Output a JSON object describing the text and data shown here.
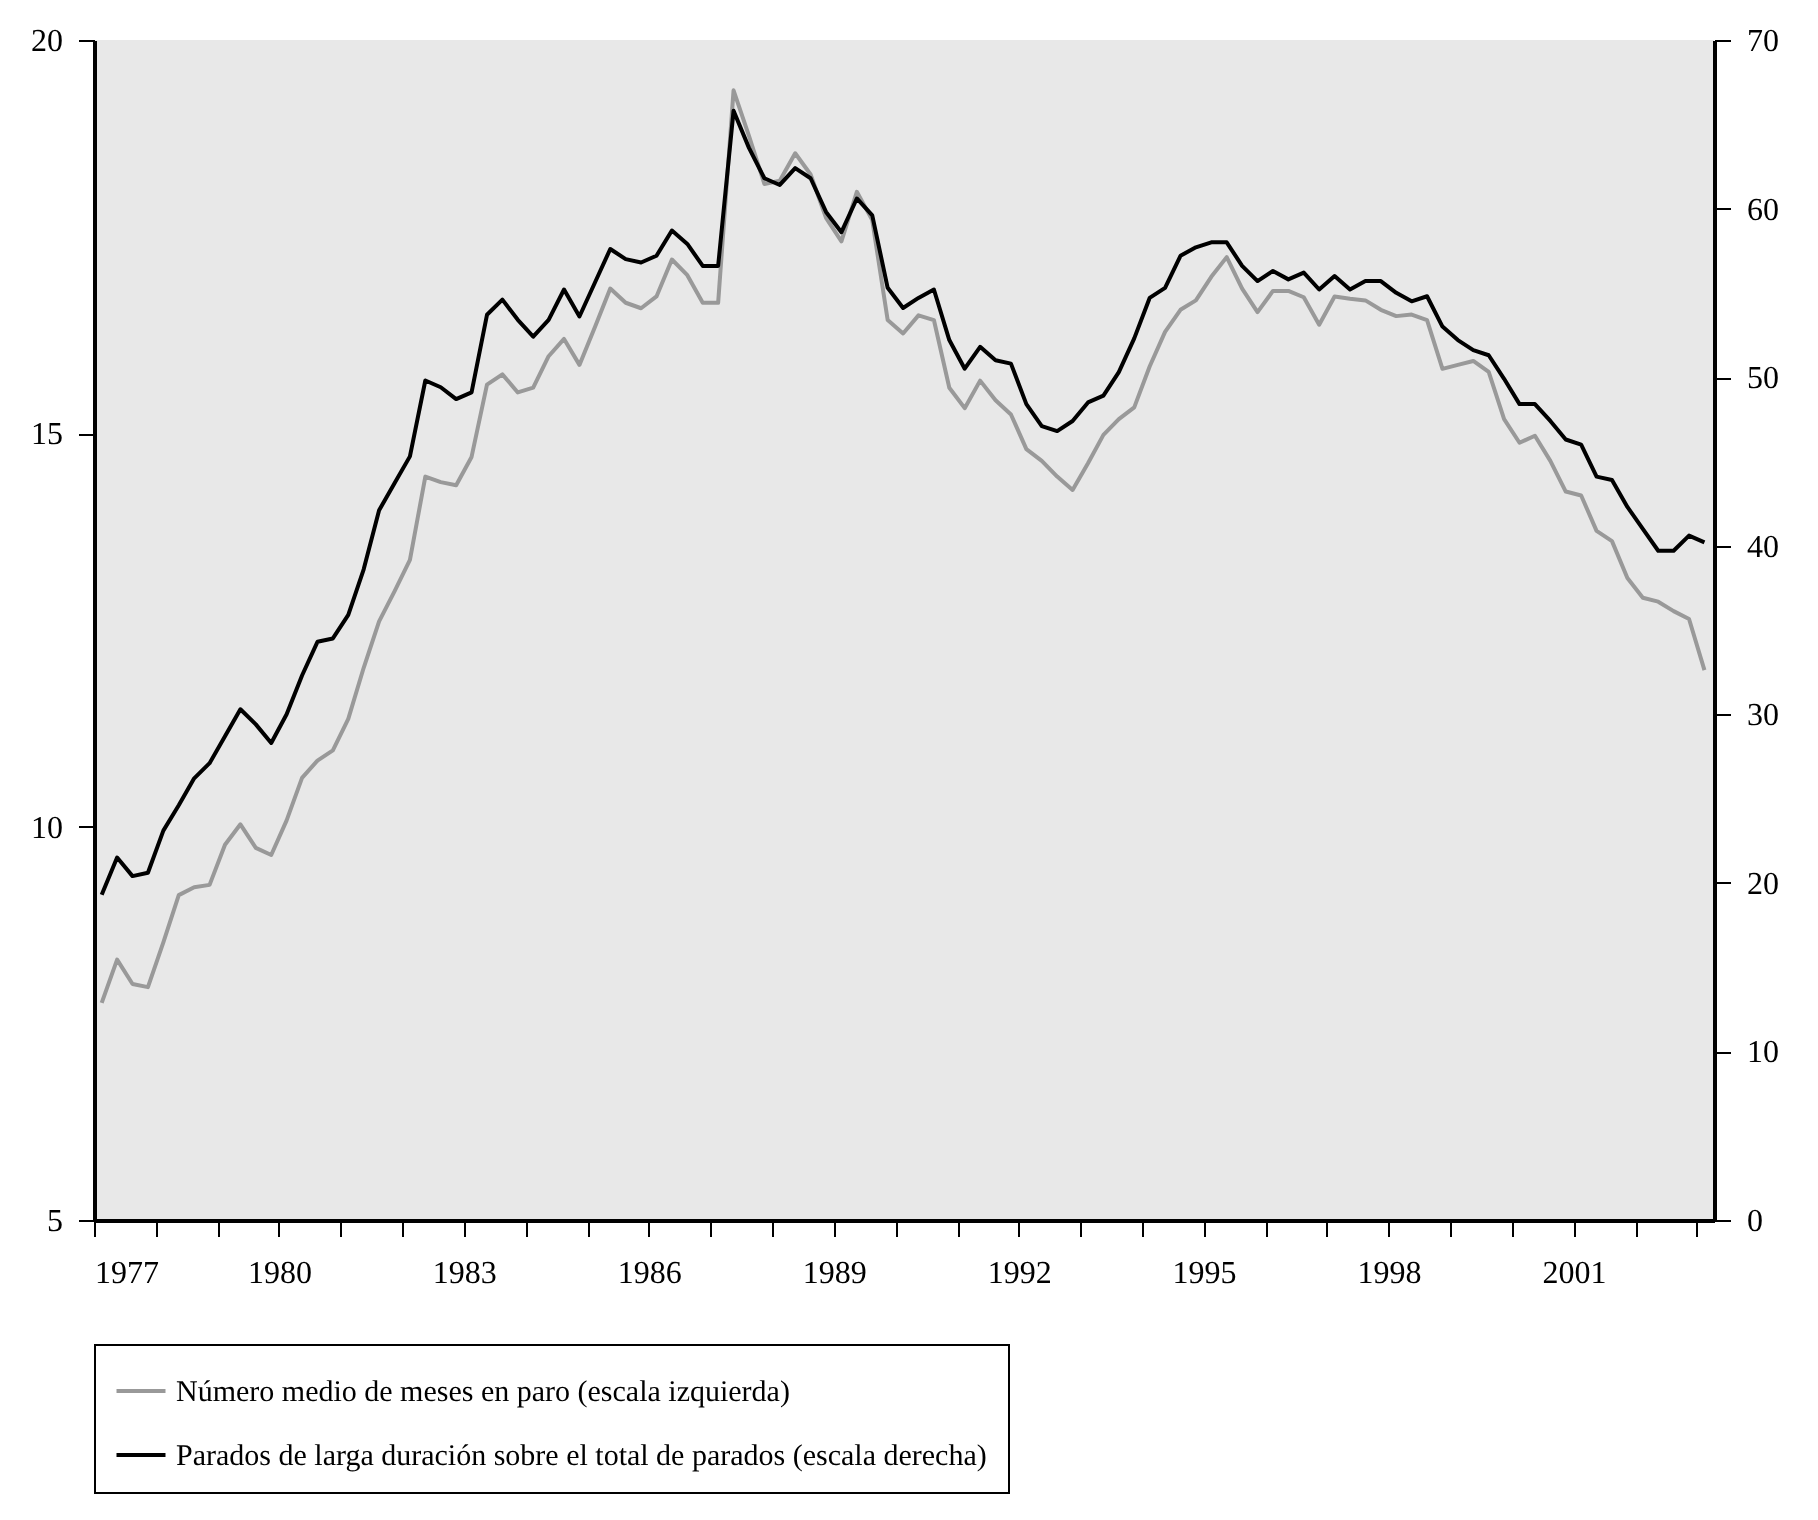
{
  "chart_data": {
    "type": "line",
    "x": [
      1977.125,
      1977.375,
      1977.625,
      1977.875,
      1978.125,
      1978.375,
      1978.625,
      1978.875,
      1979.125,
      1979.375,
      1979.625,
      1979.875,
      1980.125,
      1980.375,
      1980.625,
      1980.875,
      1981.125,
      1981.375,
      1981.625,
      1981.875,
      1982.125,
      1982.375,
      1982.625,
      1982.875,
      1983.125,
      1983.375,
      1983.625,
      1983.875,
      1984.125,
      1984.375,
      1984.625,
      1984.875,
      1985.125,
      1985.375,
      1985.625,
      1985.875,
      1986.125,
      1986.375,
      1986.625,
      1986.875,
      1987.125,
      1987.375,
      1987.625,
      1987.875,
      1988.125,
      1988.375,
      1988.625,
      1988.875,
      1989.125,
      1989.375,
      1989.625,
      1989.875,
      1990.125,
      1990.375,
      1990.625,
      1990.875,
      1991.125,
      1991.375,
      1991.625,
      1991.875,
      1992.125,
      1992.375,
      1992.625,
      1992.875,
      1993.125,
      1993.375,
      1993.625,
      1993.875,
      1994.125,
      1994.375,
      1994.625,
      1994.875,
      1995.125,
      1995.375,
      1995.625,
      1995.875,
      1996.125,
      1996.375,
      1996.625,
      1996.875,
      1997.125,
      1997.375,
      1997.625,
      1997.875,
      1998.125,
      1998.375,
      1998.625,
      1998.875,
      1999.125,
      1999.375,
      1999.625,
      1999.875,
      2000.125,
      2000.375,
      2000.625,
      2000.875,
      2001.125,
      2001.375,
      2001.625,
      2001.875,
      2002.125,
      2002.375,
      2002.625,
      2002.875,
      2003.125
    ],
    "series": [
      {
        "name": "Número medio de meses en paro (escala izquierda)",
        "color": "#999999",
        "values": [
          7.76,
          8.31,
          8.0,
          7.96,
          8.53,
          9.13,
          9.23,
          9.26,
          9.77,
          10.03,
          9.73,
          9.64,
          10.08,
          10.62,
          10.84,
          10.97,
          11.37,
          12.02,
          12.61,
          12.99,
          13.39,
          14.45,
          14.38,
          14.34,
          14.7,
          15.62,
          15.75,
          15.52,
          15.58,
          15.98,
          16.2,
          15.87,
          16.35,
          16.84,
          16.66,
          16.59,
          16.74,
          17.21,
          17.01,
          16.66,
          16.66,
          19.36,
          18.78,
          18.17,
          18.21,
          18.56,
          18.29,
          17.74,
          17.44,
          18.07,
          17.71,
          16.44,
          16.27,
          16.5,
          16.44,
          15.58,
          15.32,
          15.67,
          15.42,
          15.24,
          14.8,
          14.65,
          14.45,
          14.28,
          14.62,
          14.98,
          15.18,
          15.33,
          15.85,
          16.29,
          16.57,
          16.69,
          16.99,
          17.24,
          16.84,
          16.54,
          16.81,
          16.81,
          16.73,
          16.38,
          16.74,
          16.71,
          16.69,
          16.57,
          16.49,
          16.51,
          16.44,
          15.82,
          15.87,
          15.92,
          15.78,
          15.18,
          14.88,
          14.97,
          14.65,
          14.26,
          14.21,
          13.76,
          13.63,
          13.16,
          12.91,
          12.86,
          12.74,
          12.64,
          11.99
        ]
      },
      {
        "name": "Parados de larga duración sobre el total de parados (escala derecha)",
        "color": "#000000",
        "axis": "y2",
        "values": [
          19.3,
          21.5,
          20.4,
          20.6,
          23.1,
          24.6,
          26.2,
          27.1,
          28.7,
          30.3,
          29.4,
          28.3,
          30.0,
          32.3,
          34.3,
          34.5,
          35.9,
          38.6,
          42.1,
          43.7,
          45.3,
          49.8,
          49.4,
          48.7,
          49.1,
          53.7,
          54.6,
          53.4,
          52.4,
          53.4,
          55.2,
          53.6,
          55.6,
          57.6,
          57.0,
          56.8,
          57.2,
          58.7,
          57.9,
          56.6,
          56.6,
          65.8,
          63.6,
          61.8,
          61.4,
          62.4,
          61.8,
          59.8,
          58.6,
          60.6,
          59.6,
          55.3,
          54.1,
          54.7,
          55.2,
          52.2,
          50.5,
          51.8,
          51.0,
          50.8,
          48.4,
          47.1,
          46.8,
          47.4,
          48.5,
          48.9,
          50.3,
          52.3,
          54.7,
          55.3,
          57.2,
          57.7,
          58.0,
          58.0,
          56.6,
          55.7,
          56.3,
          55.8,
          56.2,
          55.2,
          56.0,
          55.2,
          55.7,
          55.7,
          55.0,
          54.5,
          54.8,
          53.0,
          52.2,
          51.6,
          51.3,
          49.9,
          48.4,
          48.4,
          47.4,
          46.3,
          46.0,
          44.1,
          43.9,
          42.3,
          41.0,
          39.7,
          39.7,
          40.6,
          40.2
        ]
      }
    ],
    "xlim": [
      1977,
      2003.28
    ],
    "xticks": [
      1977,
      {
        "value": 1978,
        "label": null
      },
      {
        "value": 1979,
        "label": null
      },
      1980,
      {
        "value": 1981,
        "label": null
      },
      {
        "value": 1982,
        "label": null
      },
      1983,
      {
        "value": 1984,
        "label": null
      },
      {
        "value": 1985,
        "label": null
      },
      1986,
      {
        "value": 1987,
        "label": null
      },
      {
        "value": 1988,
        "label": null
      },
      1989,
      {
        "value": 1990,
        "label": null
      },
      {
        "value": 1991,
        "label": null
      },
      1992,
      {
        "value": 1993,
        "label": null
      },
      {
        "value": 1994,
        "label": null
      },
      1995,
      {
        "value": 1996,
        "label": null
      },
      {
        "value": 1997,
        "label": null
      },
      1998,
      {
        "value": 1999,
        "label": null
      },
      {
        "value": 2000,
        "label": null
      },
      2001,
      {
        "value": 2002,
        "label": null
      },
      {
        "value": 2003,
        "label": null
      }
    ],
    "ylim": [
      5,
      20
    ],
    "yticks": [
      5,
      10,
      15,
      20
    ],
    "y2lim": [
      0,
      70
    ],
    "y2ticks": [
      0,
      10,
      20,
      30,
      40,
      50,
      60,
      70
    ],
    "grid": false,
    "legend": "bottom"
  }
}
